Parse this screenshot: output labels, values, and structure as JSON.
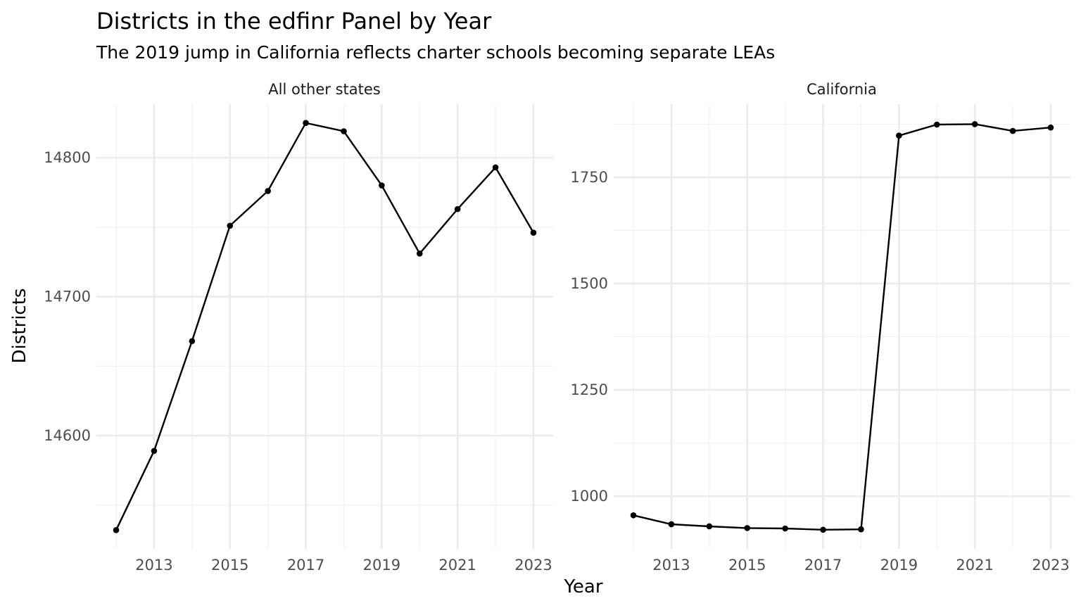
{
  "chart_data": {
    "type": "line",
    "title": "Districts in the edfinr Panel by Year",
    "subtitle": "The 2019 jump in California reflects charter schools becoming separate LEAs",
    "xlabel": "Year",
    "ylabel": "Districts",
    "grid": true,
    "legend": "none",
    "line_color": "#000000",
    "panels": [
      {
        "name": "All other states",
        "x": [
          2012,
          2013,
          2014,
          2015,
          2016,
          2017,
          2018,
          2019,
          2020,
          2021,
          2022,
          2023
        ],
        "values": [
          14532,
          14589,
          14668,
          14751,
          14776,
          14825,
          14819,
          14780,
          14731,
          14763,
          14793,
          14746
        ],
        "xlim": [
          2011.48,
          2023.52
        ],
        "ylim": [
          14518.5,
          14838.5
        ],
        "x_ticks": [
          2013,
          2015,
          2017,
          2019,
          2021,
          2023
        ],
        "y_ticks": [
          14600,
          14700,
          14800
        ]
      },
      {
        "name": "California",
        "x": [
          2012,
          2013,
          2014,
          2015,
          2016,
          2017,
          2018,
          2019,
          2020,
          2021,
          2022,
          2023
        ],
        "values": [
          955,
          934,
          929,
          925,
          924,
          921,
          922,
          1848,
          1874,
          1875,
          1859,
          1867
        ],
        "xlim": [
          2011.48,
          2023.52
        ],
        "ylim": [
          876,
          1922
        ],
        "x_ticks": [
          2013,
          2015,
          2017,
          2019,
          2021,
          2023
        ],
        "y_ticks": [
          1000,
          1250,
          1500,
          1750
        ]
      }
    ]
  }
}
